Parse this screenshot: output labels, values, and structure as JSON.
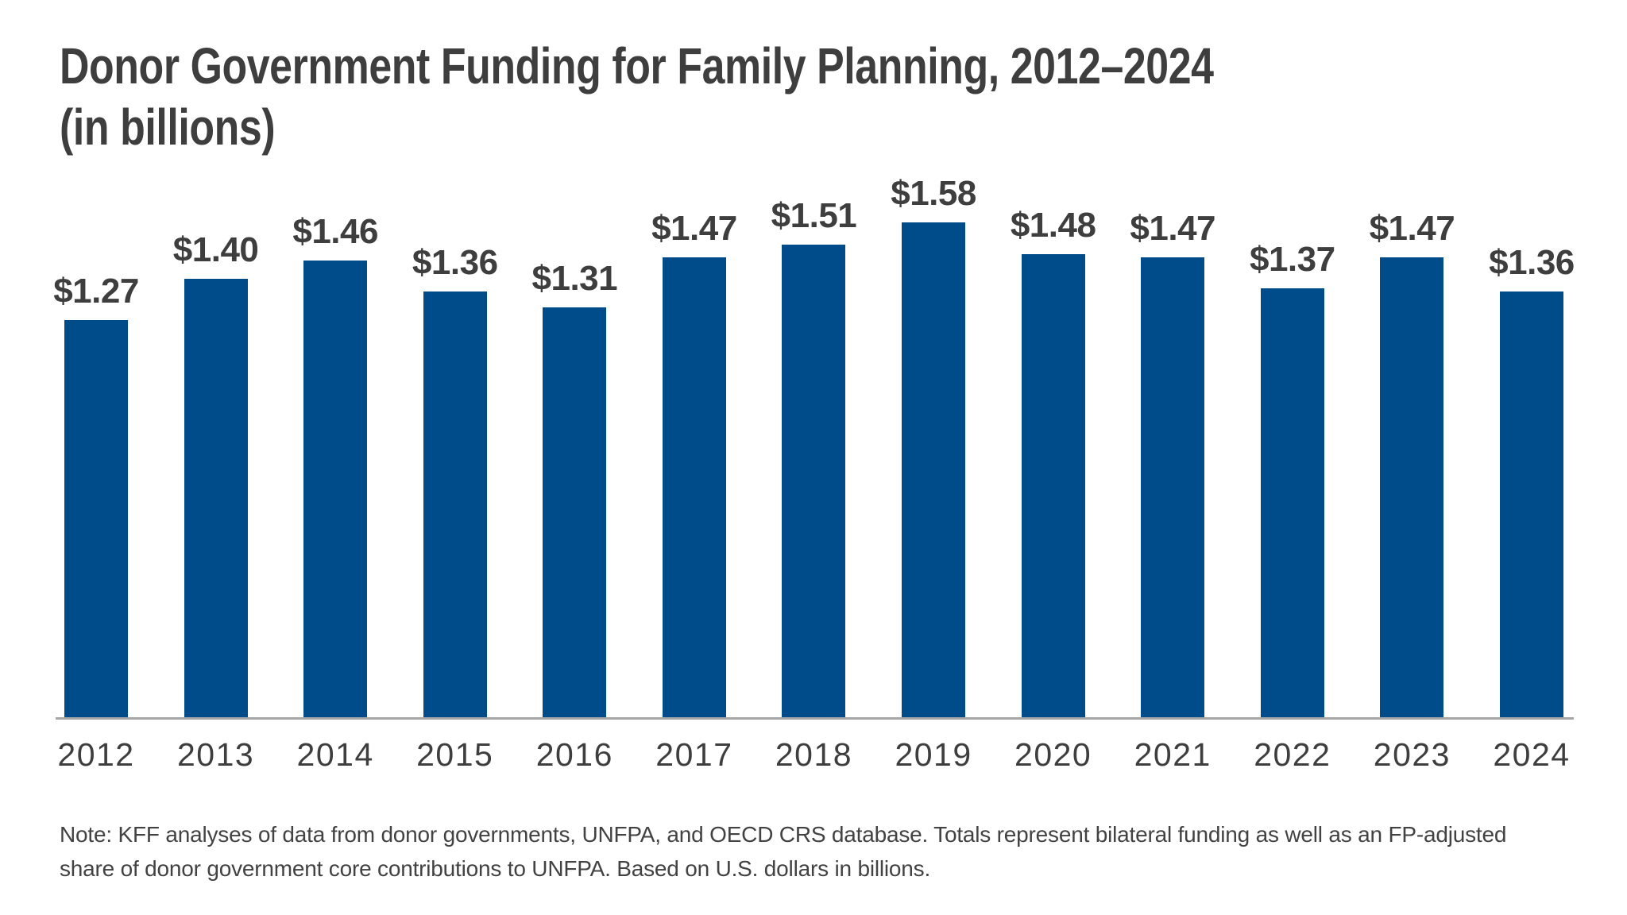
{
  "title": {
    "line1": "Donor Government Funding for Family Planning, 2012–2024",
    "line2": "(in billions)"
  },
  "note": {
    "line1": "Note: KFF analyses of data from donor governments, UNFPA, and OECD CRS database. Totals represent bilateral funding as well as an FP-adjusted",
    "line2": "share of donor government core contributions to UNFPA. Based on U.S. dollars in billions."
  },
  "chart_data": {
    "type": "bar",
    "title": "Donor Government Funding for Family Planning, 2012–2024 (in billions)",
    "categories": [
      "2012",
      "2013",
      "2014",
      "2015",
      "2016",
      "2017",
      "2018",
      "2019",
      "2020",
      "2021",
      "2022",
      "2023",
      "2024"
    ],
    "values": [
      1.27,
      1.4,
      1.46,
      1.36,
      1.31,
      1.47,
      1.51,
      1.58,
      1.48,
      1.47,
      1.37,
      1.47,
      1.36
    ],
    "value_labels": [
      "$1.27",
      "$1.40",
      "$1.46",
      "$1.36",
      "$1.31",
      "$1.47",
      "$1.51",
      "$1.58",
      "$1.48",
      "$1.47",
      "$1.37",
      "$1.47",
      "$1.36"
    ],
    "xlabel": "",
    "ylabel": "",
    "ylim": [
      0,
      1.7
    ],
    "grid": false,
    "legend": false,
    "y_axis_visible": false,
    "bar_color": "#004C8A",
    "axis_line_color": "#A6A6A6",
    "label_color": "#3E3E3E"
  }
}
